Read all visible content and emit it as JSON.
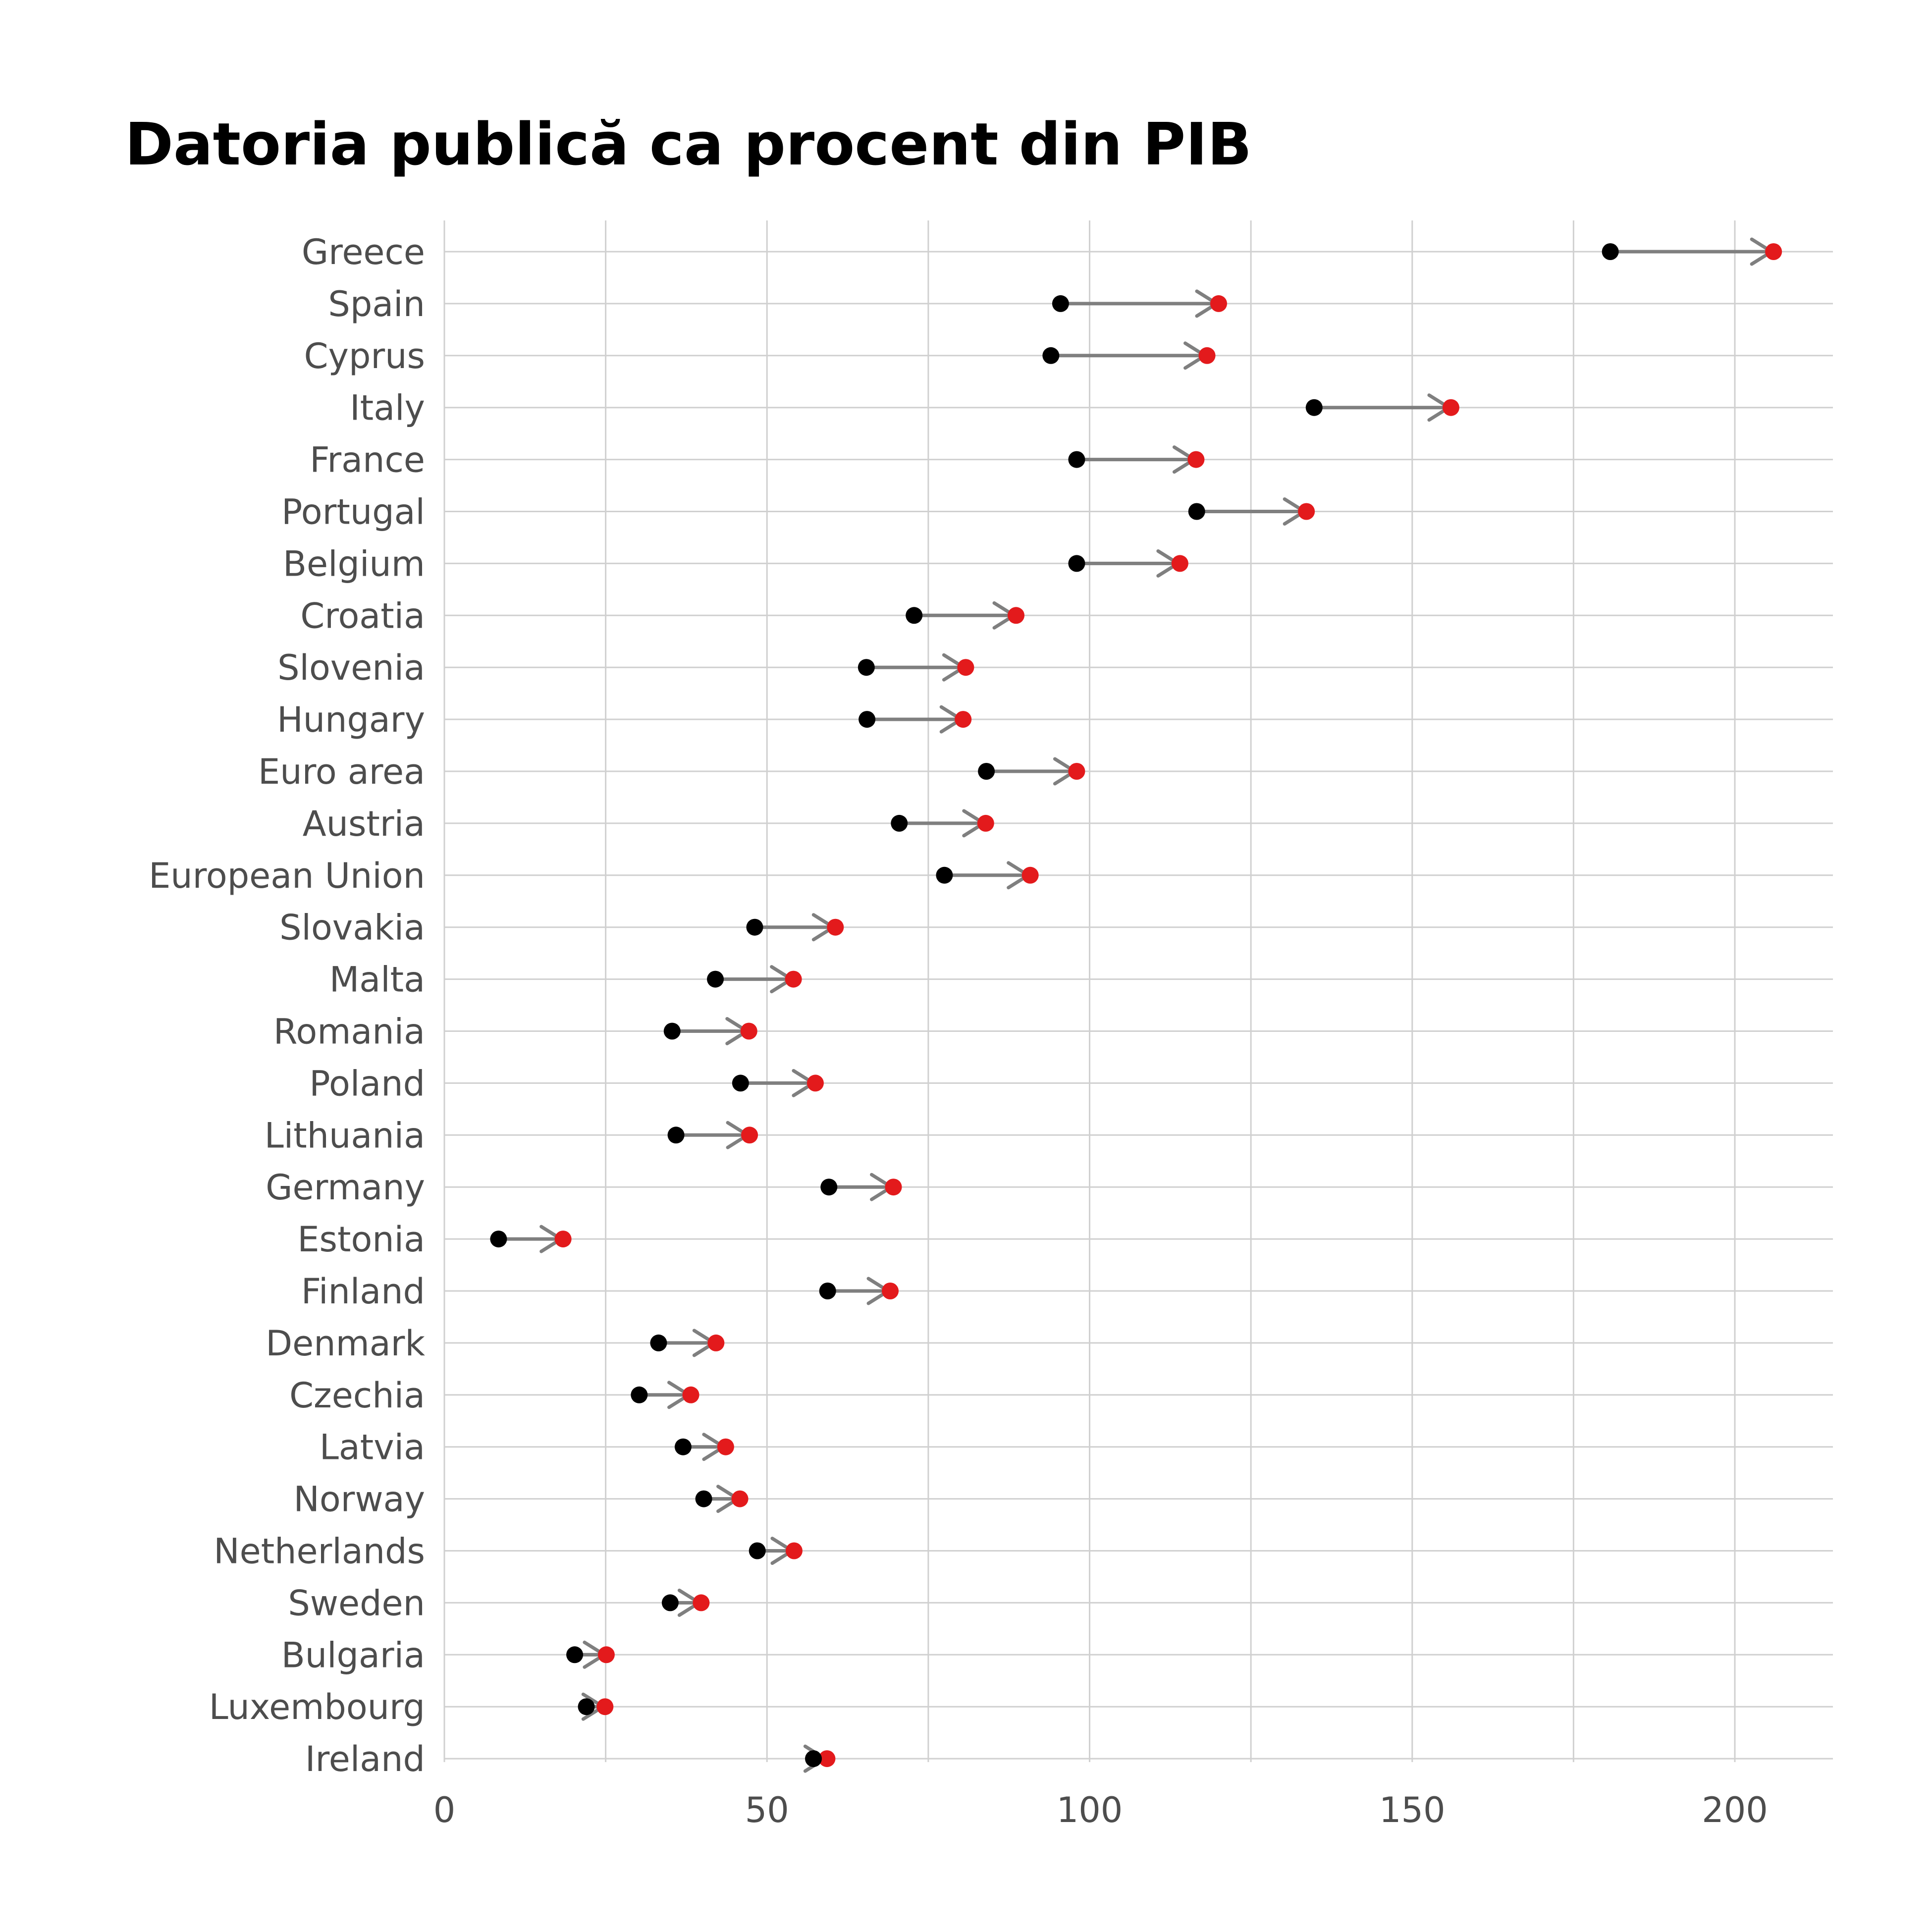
{
  "chart_data": {
    "type": "dumbbell",
    "title": "Datoria publică ca procent din PIB",
    "xlabel": "",
    "ylabel": "",
    "xlim": [
      0,
      215
    ],
    "x_ticks": [
      0,
      50,
      100,
      150,
      200
    ],
    "grid": true,
    "colors": {
      "start_point": "#000000",
      "end_point": "#e31a1c",
      "connector": "#7f7f7f",
      "grid": "#d0d0d0"
    },
    "categories": [
      "Greece",
      "Spain",
      "Cyprus",
      "Italy",
      "France",
      "Portugal",
      "Belgium",
      "Croatia",
      "Slovenia",
      "Hungary",
      "Euro area",
      "Austria",
      "European Union",
      "Slovakia",
      "Malta",
      "Romania",
      "Poland",
      "Lithuania",
      "Germany",
      "Estonia",
      "Finland",
      "Denmark",
      "Czechia",
      "Latvia",
      "Norway",
      "Netherlands",
      "Sweden",
      "Bulgaria",
      "Luxembourg",
      "Ireland"
    ],
    "start_values": [
      180.7,
      95.5,
      94.0,
      134.8,
      98.0,
      116.6,
      98.0,
      72.8,
      65.4,
      65.5,
      84.0,
      70.5,
      77.5,
      48.1,
      42.0,
      35.3,
      45.9,
      35.9,
      59.6,
      8.4,
      59.4,
      33.2,
      30.2,
      37.0,
      40.2,
      48.5,
      35.0,
      20.2,
      22.0,
      57.2
    ],
    "end_values": [
      206.0,
      120.0,
      118.2,
      156.0,
      116.5,
      133.6,
      114.0,
      88.6,
      80.8,
      80.4,
      98.0,
      83.9,
      90.8,
      60.6,
      54.1,
      47.2,
      57.5,
      47.3,
      69.6,
      18.4,
      69.1,
      42.1,
      38.2,
      43.6,
      45.8,
      54.2,
      39.8,
      25.1,
      24.9,
      59.3
    ]
  }
}
